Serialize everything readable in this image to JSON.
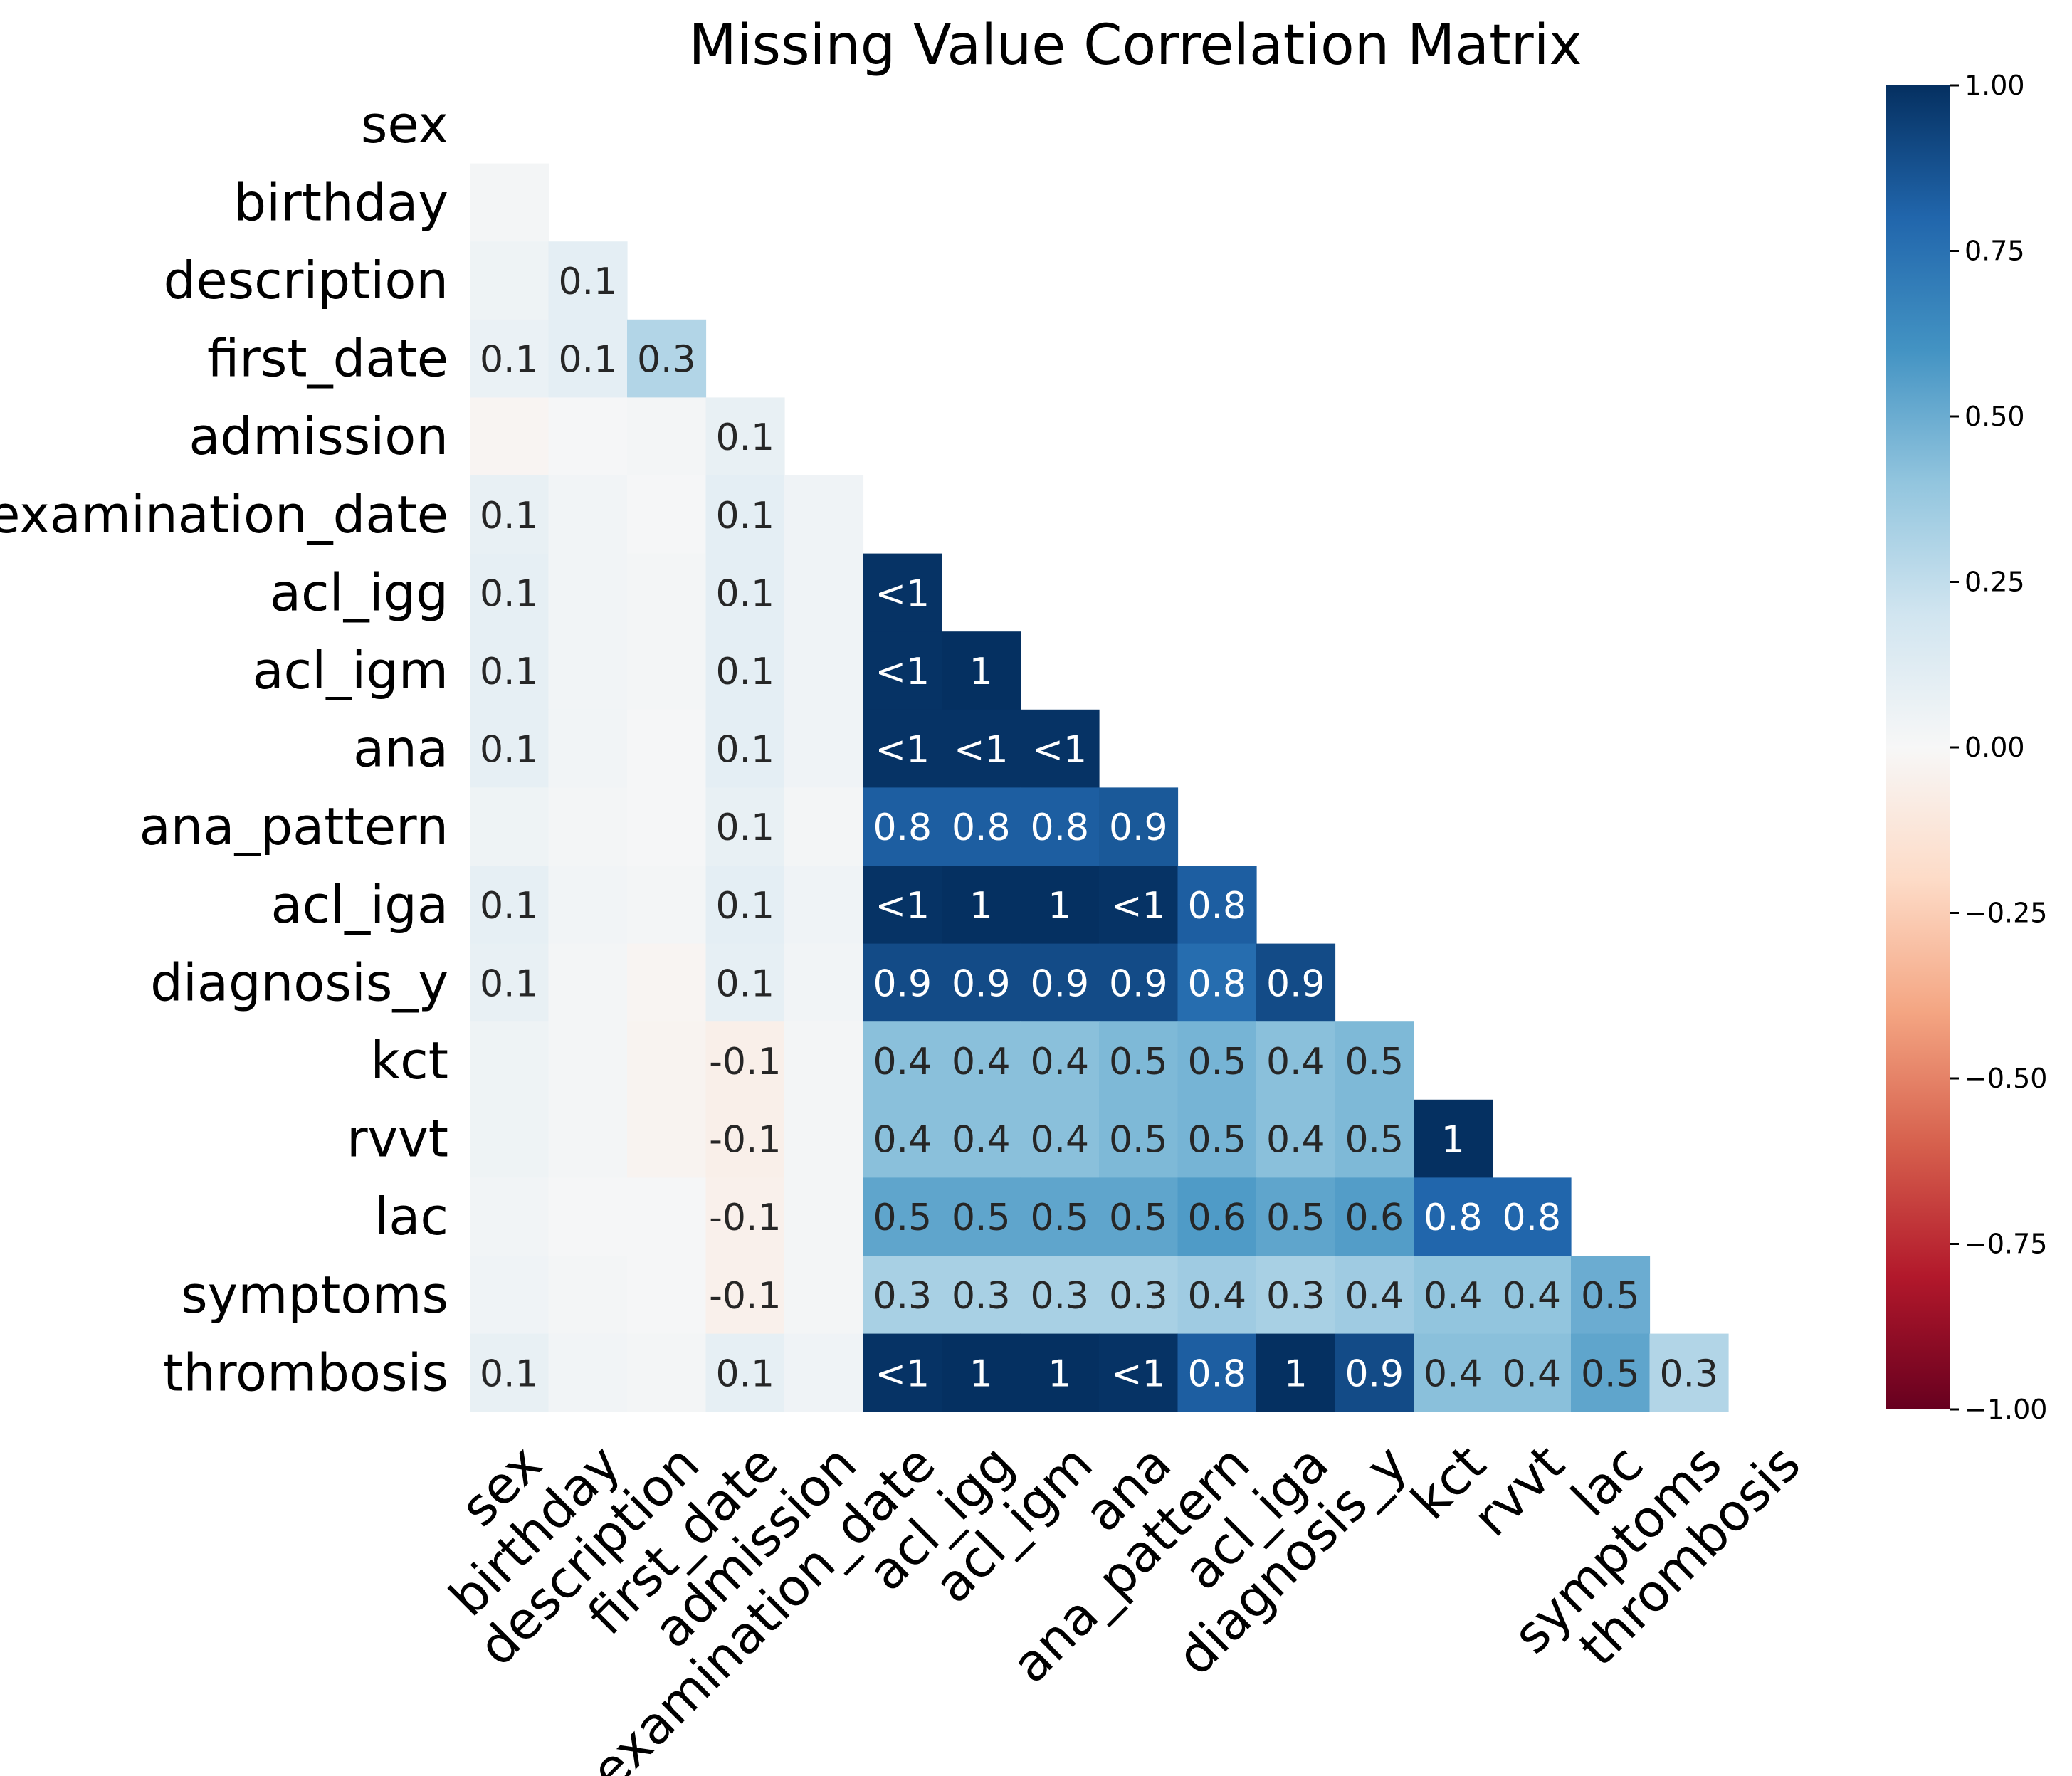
{
  "chart_data": {
    "type": "heatmap",
    "title": "Missing Value Correlation Matrix",
    "variables": [
      "sex",
      "birthday",
      "description",
      "first_date",
      "admission",
      "examination_date",
      "acl_igg",
      "acl_igm",
      "ana",
      "ana_pattern",
      "acl_iga",
      "diagnosis_y",
      "kct",
      "rvvt",
      "lac",
      "symptoms",
      "thrombosis"
    ],
    "mask": "upper triangle including diagonal",
    "values": [
      [],
      [
        0.02
      ],
      [
        0.05,
        0.1
      ],
      [
        0.07,
        0.1,
        0.3
      ],
      [
        -0.02,
        0.01,
        0.02,
        0.08
      ],
      [
        0.08,
        0.03,
        0.01,
        0.1,
        0.04
      ],
      [
        0.09,
        0.03,
        0.02,
        0.1,
        0.04,
        0.99
      ],
      [
        0.09,
        0.03,
        0.02,
        0.1,
        0.04,
        0.99,
        1.0
      ],
      [
        0.09,
        0.03,
        0.01,
        0.1,
        0.04,
        0.99,
        0.99,
        0.99
      ],
      [
        0.05,
        0.02,
        0.01,
        0.08,
        0.02,
        0.83,
        0.83,
        0.83,
        0.85
      ],
      [
        0.09,
        0.03,
        0.02,
        0.1,
        0.04,
        0.99,
        1.0,
        1.0,
        0.99,
        0.83
      ],
      [
        0.08,
        0.02,
        -0.02,
        0.09,
        0.03,
        0.9,
        0.9,
        0.9,
        0.9,
        0.77,
        0.9
      ],
      [
        0.05,
        0.02,
        -0.03,
        -0.06,
        0.02,
        0.42,
        0.42,
        0.42,
        0.45,
        0.47,
        0.42,
        0.45
      ],
      [
        0.05,
        0.02,
        -0.03,
        -0.06,
        0.02,
        0.42,
        0.42,
        0.42,
        0.45,
        0.47,
        0.42,
        0.45,
        1.0
      ],
      [
        0.03,
        0.01,
        0.01,
        -0.05,
        0.02,
        0.53,
        0.53,
        0.53,
        0.53,
        0.57,
        0.53,
        0.56,
        0.8,
        0.8
      ],
      [
        0.04,
        0.02,
        0.01,
        -0.05,
        0.02,
        0.33,
        0.33,
        0.33,
        0.33,
        0.36,
        0.33,
        0.36,
        0.4,
        0.4,
        0.5
      ],
      [
        0.08,
        0.03,
        0.02,
        0.09,
        0.04,
        0.99,
        1.0,
        1.0,
        0.99,
        0.83,
        1.0,
        0.9,
        0.42,
        0.42,
        0.53,
        0.3
      ]
    ],
    "cell_labels": [
      [],
      [
        ""
      ],
      [
        "",
        "0.1"
      ],
      [
        "0.1",
        "0.1",
        "0.3"
      ],
      [
        "",
        "",
        "",
        "0.1"
      ],
      [
        "0.1",
        "",
        "",
        "0.1",
        ""
      ],
      [
        "0.1",
        "",
        "",
        "0.1",
        "",
        "<1"
      ],
      [
        "0.1",
        "",
        "",
        "0.1",
        "",
        "<1",
        "1"
      ],
      [
        "0.1",
        "",
        "",
        "0.1",
        "",
        "<1",
        "<1",
        "<1"
      ],
      [
        "",
        "",
        "",
        "0.1",
        "",
        "0.8",
        "0.8",
        "0.8",
        "0.9"
      ],
      [
        "0.1",
        "",
        "",
        "0.1",
        "",
        "<1",
        "1",
        "1",
        "<1",
        "0.8"
      ],
      [
        "0.1",
        "",
        "",
        "0.1",
        "",
        "0.9",
        "0.9",
        "0.9",
        "0.9",
        "0.8",
        "0.9"
      ],
      [
        "",
        "",
        "",
        "-0.1",
        "",
        "0.4",
        "0.4",
        "0.4",
        "0.5",
        "0.5",
        "0.4",
        "0.5"
      ],
      [
        "",
        "",
        "",
        "-0.1",
        "",
        "0.4",
        "0.4",
        "0.4",
        "0.5",
        "0.5",
        "0.4",
        "0.5",
        "1"
      ],
      [
        "",
        "",
        "",
        "-0.1",
        "",
        "0.5",
        "0.5",
        "0.5",
        "0.5",
        "0.6",
        "0.5",
        "0.6",
        "0.8",
        "0.8"
      ],
      [
        "",
        "",
        "",
        "-0.1",
        "",
        "0.3",
        "0.3",
        "0.3",
        "0.3",
        "0.4",
        "0.3",
        "0.4",
        "0.4",
        "0.4",
        "0.5"
      ],
      [
        "0.1",
        "",
        "",
        "0.1",
        "",
        "<1",
        "1",
        "1",
        "<1",
        "0.8",
        "1",
        "0.9",
        "0.4",
        "0.4",
        "0.5",
        "0.3"
      ]
    ],
    "colorbar": {
      "range": [
        -1.0,
        1.0
      ],
      "ticks": [
        1.0,
        0.75,
        0.5,
        0.25,
        0.0,
        -0.25,
        -0.5,
        -0.75,
        -1.0
      ],
      "tick_labels": [
        "1.00",
        "0.75",
        "0.50",
        "0.25",
        "0.00",
        "−0.25",
        "−0.50",
        "−0.75",
        "−1.00"
      ],
      "colormap": "RdBu",
      "stops": [
        "#67001f",
        "#b2182b",
        "#d6604d",
        "#f4a582",
        "#fddbc7",
        "#f7f7f7",
        "#d1e5f0",
        "#92c5de",
        "#4393c3",
        "#2166ac",
        "#053061"
      ]
    },
    "grid": false
  }
}
